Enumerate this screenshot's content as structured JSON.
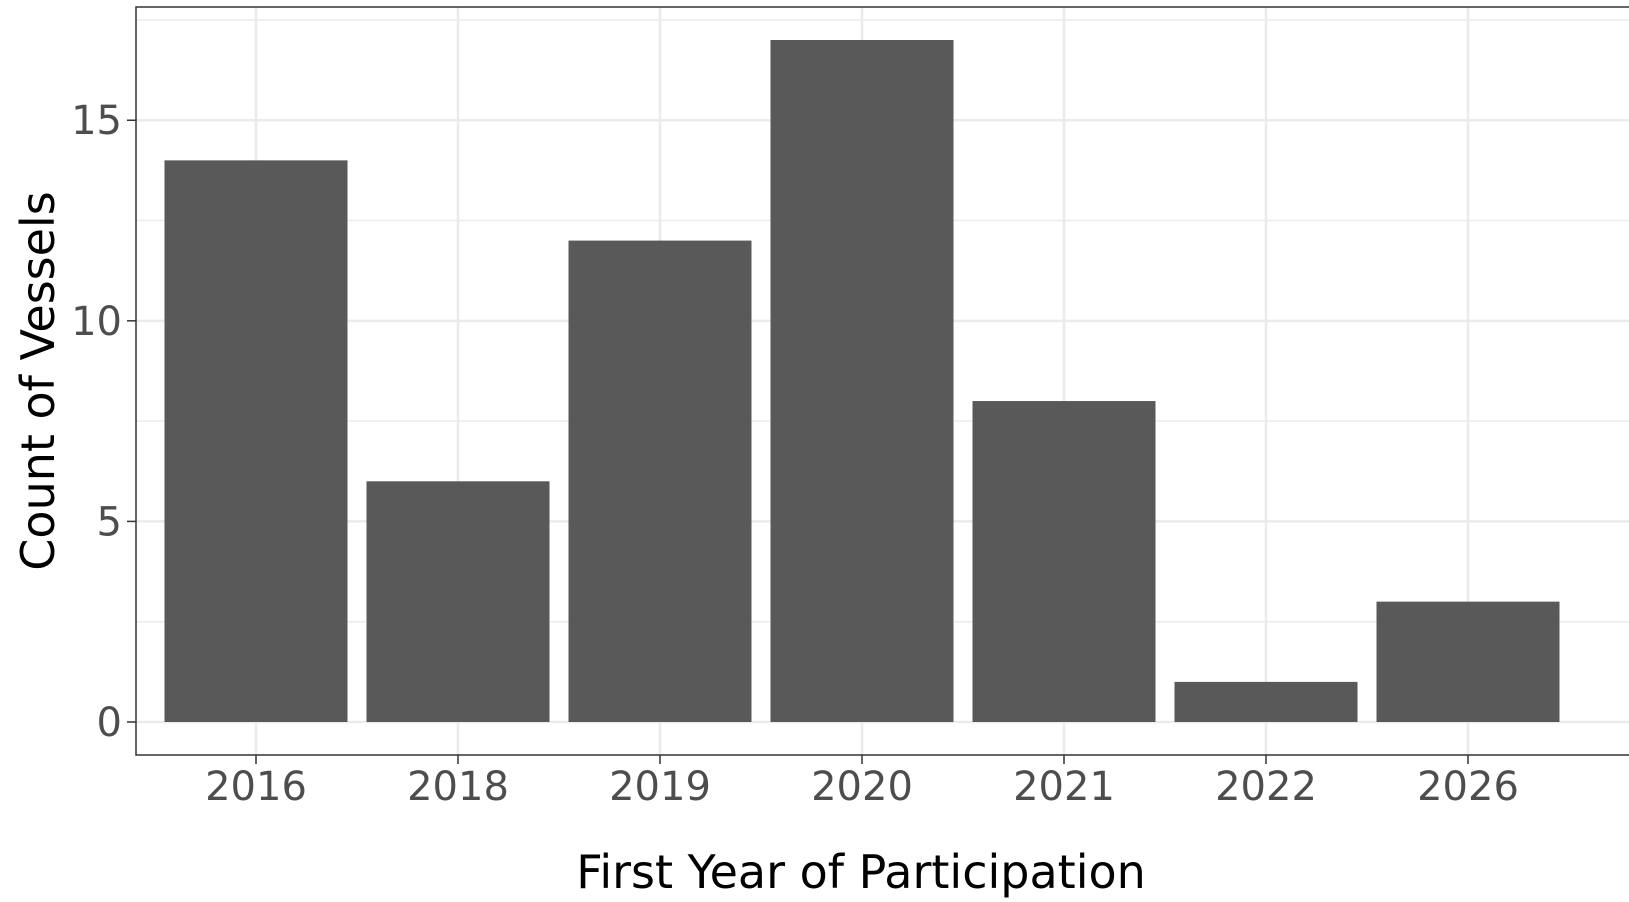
{
  "chart_data": {
    "type": "bar",
    "title": "",
    "xlabel": "First Year of Participation",
    "ylabel": "Count of Vessels",
    "categories": [
      "2016",
      "2018",
      "2019",
      "2020",
      "2021",
      "2022",
      "2026"
    ],
    "values": [
      14,
      6,
      12,
      17,
      8,
      1,
      3
    ],
    "ylim": [
      0,
      17.5
    ],
    "yticks": [
      0,
      5,
      10,
      15
    ],
    "grid": true,
    "legend": "none",
    "colors": {
      "bar": "#595959",
      "grid": "#ebebeb",
      "panel_border": "#333333",
      "background": "#ffffff"
    }
  }
}
